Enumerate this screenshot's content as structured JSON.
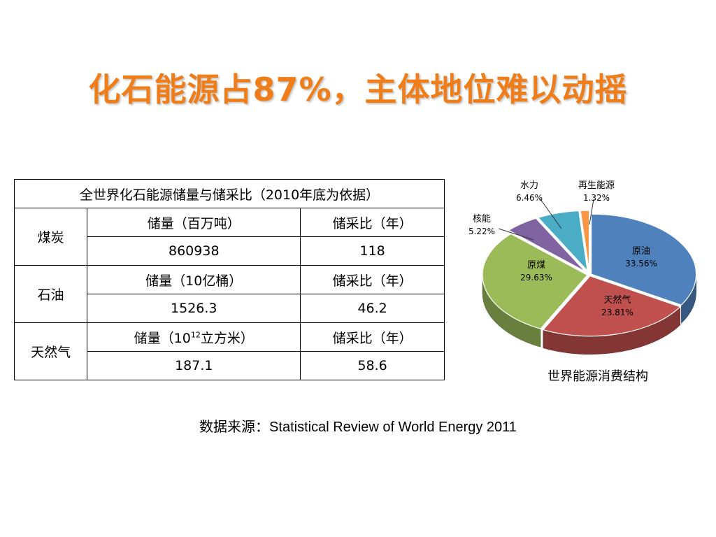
{
  "title": "化石能源占87%，主体地位难以动摇",
  "table": {
    "header": "全世界化石能源储量与储采比（2010年底为依据）",
    "rows": [
      {
        "name": "煤炭",
        "col_a_label": "储量（百万吨）",
        "col_b_label": "储采比（年）",
        "col_a_value": "860938",
        "col_b_value": "118"
      },
      {
        "name": "石油",
        "col_a_label": "储量（10亿桶）",
        "col_b_label": "储采比（年）",
        "col_a_value": "1526.3",
        "col_b_value": "46.2"
      },
      {
        "name": "天然气",
        "col_a_label_prefix": "储量（10",
        "col_a_label_sup": "12",
        "col_a_label_suffix": "立方米）",
        "col_b_label": "储采比（年）",
        "col_a_value": "187.1",
        "col_b_value": "58.6"
      }
    ]
  },
  "chart_data": {
    "type": "pie",
    "title": "世界能源消费结构",
    "slices": [
      {
        "label": "原油",
        "value": 33.56,
        "value_text": "33.56%",
        "color": "#4f81bd"
      },
      {
        "label": "天然气",
        "value": 23.81,
        "value_text": "23.81%",
        "color": "#c0504d"
      },
      {
        "label": "原煤",
        "value": 29.63,
        "value_text": "29.63%",
        "color": "#9bbb59"
      },
      {
        "label": "核能",
        "value": 5.22,
        "value_text": "5.22%",
        "color": "#8064a2"
      },
      {
        "label": "水力",
        "value": 6.46,
        "value_text": "6.46%",
        "color": "#4bacc6"
      },
      {
        "label": "再生能源",
        "value": 1.32,
        "value_text": "1.32%",
        "color": "#f79646"
      }
    ]
  },
  "source": "数据来源：Statistical Review of World Energy 2011",
  "colors": {
    "title": "#ef7d1a"
  }
}
